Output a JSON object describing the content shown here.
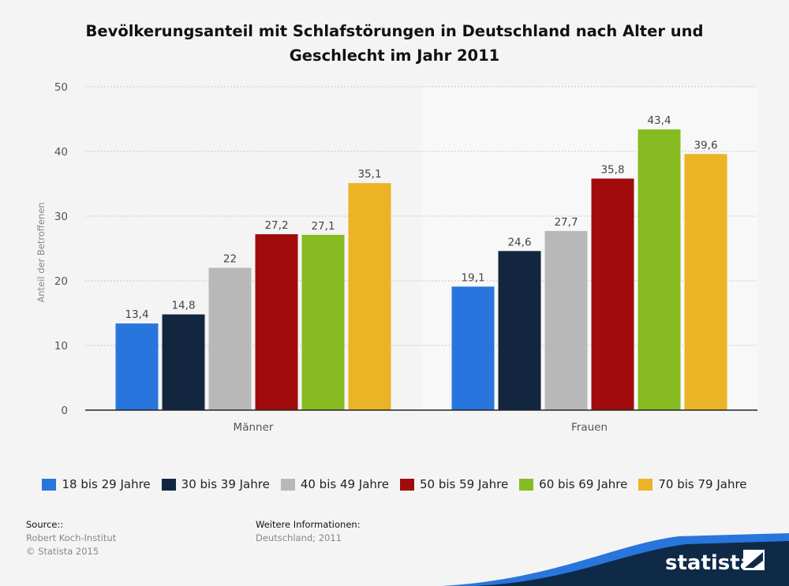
{
  "chart_data": {
    "type": "bar",
    "title": "Bevölkerungsanteil mit Schlafstörungen in Deutschland nach Alter und Geschlecht im Jahr 2011",
    "title_lines": [
      "Bevölkerungsanteil mit Schlafstörungen in Deutschland nach Alter und",
      "Geschlecht im Jahr 2011"
    ],
    "ylabel": "Anteil der Betroffenen",
    "xlabel": "",
    "ylim": [
      0,
      50
    ],
    "yticks": [
      0,
      10,
      20,
      30,
      40,
      50
    ],
    "grid": true,
    "legend_position": "bottom",
    "categories": [
      "Männer",
      "Frauen"
    ],
    "series": [
      {
        "name": "18 bis 29 Jahre",
        "color": "#2876dd",
        "values": [
          13.4,
          19.1
        ],
        "labels": [
          "13,4",
          "19,1"
        ]
      },
      {
        "name": "30 bis 39 Jahre",
        "color": "#13263f",
        "values": [
          14.8,
          24.6
        ],
        "labels": [
          "14,8",
          "24,6"
        ]
      },
      {
        "name": "40 bis 49 Jahre",
        "color": "#b8b8b8",
        "values": [
          22,
          27.7
        ],
        "labels": [
          "22",
          "27,7"
        ]
      },
      {
        "name": "50 bis 59 Jahre",
        "color": "#a20b0b",
        "values": [
          27.2,
          35.8
        ],
        "labels": [
          "27,2",
          "35,8"
        ]
      },
      {
        "name": "60 bis 69 Jahre",
        "color": "#86bb22",
        "values": [
          27.1,
          43.4
        ],
        "labels": [
          "27,1",
          "43,4"
        ]
      },
      {
        "name": "70 bis 79 Jahre",
        "color": "#ebb326",
        "values": [
          35.1,
          39.6
        ],
        "labels": [
          "35,1",
          "39,6"
        ]
      }
    ]
  },
  "source": {
    "heading": "Source::",
    "lines": [
      "Robert Koch-Institut",
      "© Statista 2015"
    ]
  },
  "info": {
    "heading": "Weitere Informationen:",
    "lines": [
      "Deutschland; 2011"
    ]
  },
  "brand": {
    "name": "statista",
    "color": "#0e2a47",
    "accent": "#2876dd"
  }
}
